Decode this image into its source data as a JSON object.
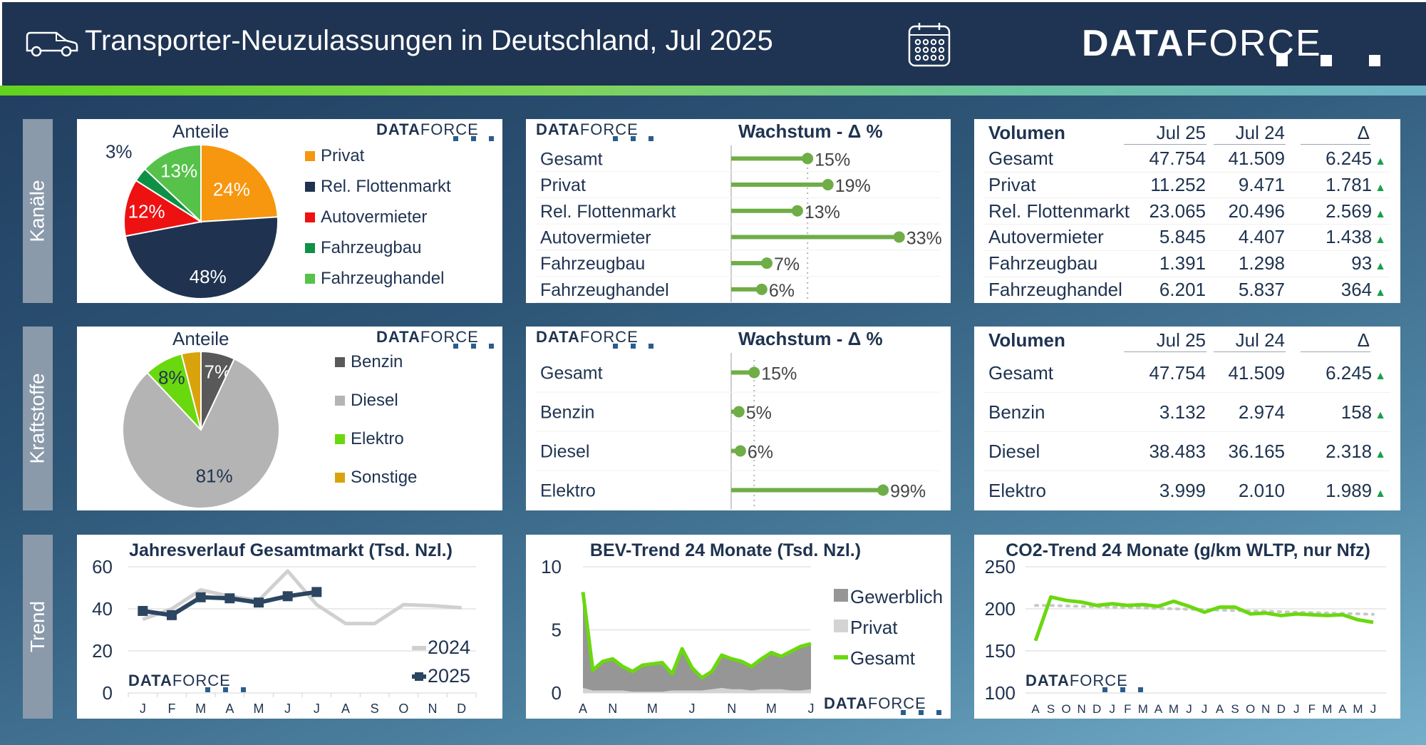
{
  "header": {
    "title": "Transporter-Neuzulassungen in Deutschland, Jul 2025",
    "logo_bold": "DATA",
    "logo_light": "FORCE",
    "icons": [
      "van-icon",
      "calendar-icon"
    ]
  },
  "colors": {
    "header_bg": "#1f3352",
    "accent_green": "#70c62d",
    "lollipop_green": "#6fad47",
    "navy": "#1f3350",
    "up_triangle": "#1aa04a"
  },
  "sections": {
    "kanaele": "Kanäle",
    "kraftstoffe": "Kraftstoffe",
    "trend": "Trend"
  },
  "watermark": {
    "bold": "DATA",
    "light": "FORCE"
  },
  "kanaele": {
    "pie_title": "Anteile",
    "growth_title": "Wachstum - Δ %",
    "volume": {
      "header": [
        "Volumen",
        "Jul 25",
        "Jul 24",
        "Δ"
      ],
      "rows": [
        {
          "label": "Gesamt",
          "jul25": "47.754",
          "jul24": "41.509",
          "delta": "6.245",
          "trend": "up"
        },
        {
          "label": "Privat",
          "jul25": "11.252",
          "jul24": "9.471",
          "delta": "1.781",
          "trend": "up"
        },
        {
          "label": "Rel. Flottenmarkt",
          "jul25": "23.065",
          "jul24": "20.496",
          "delta": "2.569",
          "trend": "up"
        },
        {
          "label": "Autovermieter",
          "jul25": "5.845",
          "jul24": "4.407",
          "delta": "1.438",
          "trend": "up"
        },
        {
          "label": "Fahrzeugbau",
          "jul25": "1.391",
          "jul24": "1.298",
          "delta": "93",
          "trend": "up"
        },
        {
          "label": "Fahrzeughandel",
          "jul25": "6.201",
          "jul24": "5.837",
          "delta": "364",
          "trend": "up"
        }
      ]
    }
  },
  "kraftstoffe": {
    "pie_title": "Anteile",
    "growth_title": "Wachstum - Δ %",
    "volume": {
      "header": [
        "Volumen",
        "Jul 25",
        "Jul 24",
        "Δ"
      ],
      "rows": [
        {
          "label": "Gesamt",
          "jul25": "47.754",
          "jul24": "41.509",
          "delta": "6.245",
          "trend": "up"
        },
        {
          "label": "Benzin",
          "jul25": "3.132",
          "jul24": "2.974",
          "delta": "158",
          "trend": "up"
        },
        {
          "label": "Diesel",
          "jul25": "38.483",
          "jul24": "36.165",
          "delta": "2.318",
          "trend": "up"
        },
        {
          "label": "Elektro",
          "jul25": "3.999",
          "jul24": "2.010",
          "delta": "1.989",
          "trend": "up"
        }
      ]
    }
  },
  "chart_data": [
    {
      "id": "pie_kanaele",
      "type": "pie",
      "title": "Anteile",
      "legend_position": "right",
      "slices": [
        {
          "label": "Privat",
          "value": 24,
          "display": "24%",
          "color": "#f7960f"
        },
        {
          "label": "Rel. Flottenmarkt",
          "value": 48,
          "display": "48%",
          "color": "#1f3350"
        },
        {
          "label": "Autovermieter",
          "value": 12,
          "display": "12%",
          "color": "#ee1111"
        },
        {
          "label": "Fahrzeugbau",
          "value": 3,
          "display": "3%",
          "color": "#0e9146"
        },
        {
          "label": "Fahrzeughandel",
          "value": 13,
          "display": "13%",
          "color": "#56c24a"
        }
      ]
    },
    {
      "id": "growth_kanaele",
      "type": "bar",
      "title": "Wachstum - Δ %",
      "categories": [
        "Gesamt",
        "Privat",
        "Rel. Flottenmarkt",
        "Autovermieter",
        "Fahrzeugbau",
        "Fahrzeughandel"
      ],
      "values": [
        15,
        19,
        13,
        33,
        7,
        6
      ],
      "labels": [
        "15%",
        "19%",
        "13%",
        "33%",
        "7%",
        "6%"
      ],
      "reference": 15,
      "xlim": [
        0,
        35
      ]
    },
    {
      "id": "pie_kraftstoffe",
      "type": "pie",
      "title": "Anteile",
      "legend_position": "right",
      "slices": [
        {
          "label": "Benzin",
          "value": 7,
          "display": "7%",
          "color": "#595959"
        },
        {
          "label": "Diesel",
          "value": 81,
          "display": "81%",
          "color": "#b4b4b4"
        },
        {
          "label": "Elektro",
          "value": 8,
          "display": "8%",
          "color": "#6ad80e"
        },
        {
          "label": "Sonstige",
          "value": 4,
          "display": "",
          "color": "#d9a30c"
        }
      ]
    },
    {
      "id": "growth_kraftstoffe",
      "type": "bar",
      "title": "Wachstum - Δ %",
      "categories": [
        "Gesamt",
        "Benzin",
        "Diesel",
        "Elektro"
      ],
      "values": [
        15,
        5,
        6,
        99
      ],
      "labels": [
        "15%",
        "5%",
        "6%",
        "99%"
      ],
      "reference": 15,
      "xlim": [
        0,
        105
      ]
    },
    {
      "id": "jahresverlauf",
      "type": "line",
      "title": "Jahresverlauf Gesamtmarkt (Tsd. Nzl.)",
      "categories": [
        "J",
        "F",
        "M",
        "A",
        "M",
        "J",
        "J",
        "A",
        "S",
        "O",
        "N",
        "D"
      ],
      "ylim": [
        0,
        60
      ],
      "yticks": [
        0,
        20,
        40,
        60
      ],
      "grid": true,
      "legend_position": "bottom-right",
      "series": [
        {
          "name": "2024",
          "color": "#d0d0d0",
          "values": [
            35,
            40,
            49,
            46,
            44,
            58,
            42,
            33,
            33,
            42,
            41.5,
            40.5
          ]
        },
        {
          "name": "2025",
          "color": "#2c4560",
          "values": [
            39,
            37,
            45.5,
            45,
            43,
            46,
            48
          ]
        }
      ]
    },
    {
      "id": "bev_trend",
      "type": "area",
      "title": "BEV-Trend 24 Monate (Tsd. Nzl.)",
      "x_tick_labels": [
        "A",
        "N",
        "M",
        "J",
        "N",
        "M",
        "J"
      ],
      "ylim": [
        0,
        10
      ],
      "yticks": [
        0,
        5,
        10
      ],
      "grid": true,
      "legend_position": "right",
      "series": [
        {
          "name": "Gewerblich",
          "color": "#969696",
          "values": [
            7.6,
            1.6,
            2.3,
            2.5,
            1.9,
            1.6,
            2.1,
            2.2,
            2.3,
            1.3,
            3.3,
            1.8,
            1.0,
            1.4,
            2.6,
            2.4,
            2.2,
            1.9,
            2.4,
            2.9,
            2.6,
            3.1,
            3.5,
            3.6
          ]
        },
        {
          "name": "Privat",
          "color": "#d3d3d3",
          "values": [
            0.4,
            0.2,
            0.2,
            0.2,
            0.2,
            0.1,
            0.1,
            0.1,
            0.1,
            0.2,
            0.2,
            0.2,
            0.2,
            0.3,
            0.4,
            0.3,
            0.3,
            0.2,
            0.3,
            0.3,
            0.3,
            0.2,
            0.2,
            0.3
          ]
        },
        {
          "name": "Gesamt",
          "color": "#6ad80e",
          "values": [
            8.0,
            1.8,
            2.5,
            2.7,
            2.1,
            1.7,
            2.2,
            2.3,
            2.4,
            1.5,
            3.5,
            2.0,
            1.2,
            1.7,
            3.0,
            2.7,
            2.5,
            2.1,
            2.7,
            3.2,
            2.9,
            3.3,
            3.7,
            3.9
          ]
        }
      ]
    },
    {
      "id": "co2_trend",
      "type": "line",
      "title": "CO2-Trend 24 Monate (g/km WLTP, nur Nfz)",
      "x_tick_labels": [
        "A",
        "S",
        "O",
        "N",
        "D",
        "J",
        "F",
        "M",
        "A",
        "M",
        "J",
        "J",
        "A",
        "S",
        "O",
        "N",
        "D",
        "J",
        "F",
        "M",
        "A",
        "M",
        "J"
      ],
      "ylim": [
        100,
        250
      ],
      "yticks": [
        100,
        150,
        200,
        250
      ],
      "grid": true,
      "series": [
        {
          "name": "CO2",
          "color": "#6ad80e",
          "values": [
            162,
            214,
            210,
            208,
            204,
            206,
            204,
            205,
            203,
            209,
            203,
            196,
            202,
            202,
            194,
            195,
            192,
            194,
            193,
            192,
            193,
            187,
            184
          ]
        },
        {
          "name": "Trend",
          "color": "#c8c8c8",
          "style": "dotted",
          "values": [
            204,
            204,
            203.5,
            203,
            202.5,
            202,
            201.5,
            201,
            200.5,
            200,
            199.5,
            199,
            198.5,
            198,
            197.5,
            197,
            196.5,
            196,
            195.5,
            195,
            194.5,
            194,
            193.5
          ]
        }
      ]
    }
  ]
}
